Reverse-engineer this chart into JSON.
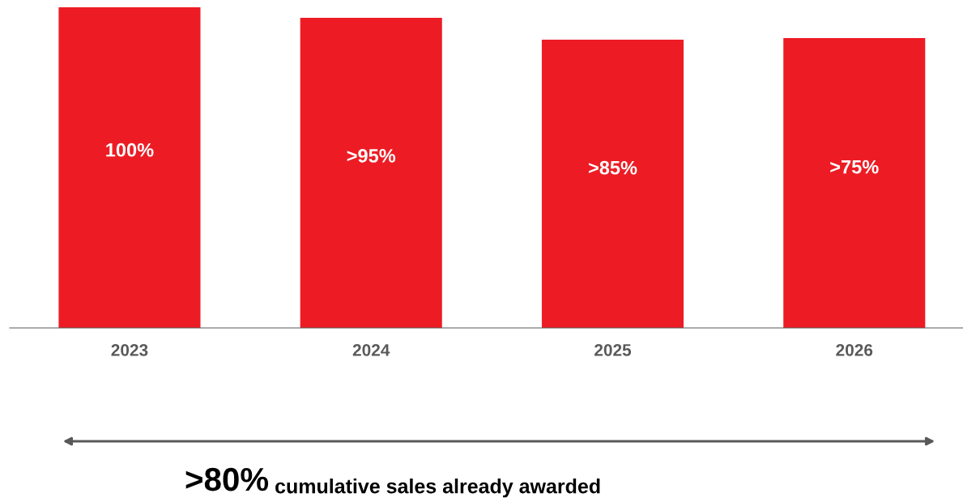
{
  "chart_data": {
    "type": "bar",
    "ylim": [
      0,
      100
    ],
    "categories": [
      "2023",
      "2024",
      "2025",
      "2026"
    ],
    "values": [
      100,
      96.7,
      89.9,
      90.4
    ],
    "value_labels": [
      "100%",
      ">95%",
      ">85%",
      ">75%"
    ],
    "color": "#ed1c24",
    "annotations": [
      ">80%",
      "cumulative sales already awarded"
    ],
    "grid": false,
    "legend": false
  }
}
